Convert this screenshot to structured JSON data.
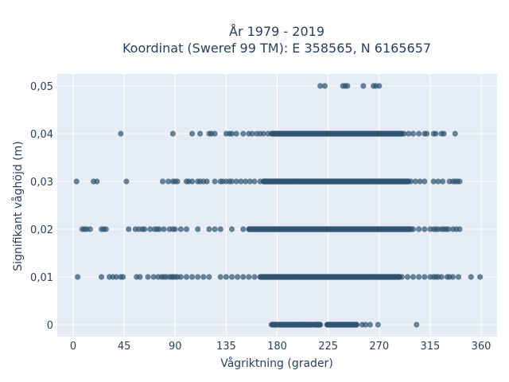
{
  "chart_data": {
    "type": "scatter",
    "title_line1": "År 1979 - 2019",
    "title_line2": "Koordinat (Sweref 99 TM): E 358565, N 6165657",
    "xlabel": "Vågriktning (grader)",
    "ylabel": "Signifikant våghöjd (m)",
    "xlim": [
      -14,
      374
    ],
    "ylim": [
      -0.0025,
      0.0525
    ],
    "x_ticks": [
      0,
      45,
      90,
      135,
      180,
      225,
      270,
      315,
      360
    ],
    "x_tick_labels": [
      "0",
      "45",
      "90",
      "135",
      "180",
      "225",
      "270",
      "315",
      "360"
    ],
    "y_ticks": [
      0,
      0.01,
      0.02,
      0.03,
      0.04,
      0.05
    ],
    "y_tick_labels": [
      "0",
      "0,01",
      "0,02",
      "0,03",
      "0,04",
      "0,05"
    ],
    "grid": true,
    "marker_color": "#2f5470",
    "plot_background": "#e5ecf6",
    "series": [
      {
        "y": 0.05,
        "points": [
          218,
          222,
          238,
          240,
          242,
          256,
          265,
          267,
          270
        ],
        "dense_ranges": []
      },
      {
        "y": 0.04,
        "points": [
          42,
          88,
          105,
          112,
          120,
          122,
          125,
          135,
          138,
          140,
          144,
          150,
          155,
          158,
          162,
          165,
          168,
          172,
          292,
          296,
          300,
          305,
          310,
          312,
          318,
          320,
          325,
          327,
          337
        ],
        "dense_ranges": [
          [
            175,
            290
          ]
        ]
      },
      {
        "y": 0.03,
        "points": [
          3,
          18,
          21,
          47,
          79,
          84,
          88,
          90,
          92,
          100,
          102,
          105,
          110,
          112,
          115,
          118,
          125,
          130,
          132,
          135,
          138,
          140,
          144,
          148,
          152,
          156,
          160,
          165,
          298,
          302,
          306,
          310,
          318,
          322,
          326,
          332,
          335,
          337,
          339,
          341
        ],
        "dense_ranges": [
          [
            168,
            296
          ]
        ]
      },
      {
        "y": 0.02,
        "points": [
          8,
          10,
          12,
          15,
          25,
          27,
          29,
          49,
          55,
          58,
          61,
          63,
          68,
          72,
          74,
          76,
          80,
          85,
          88,
          90,
          95,
          100,
          110,
          120,
          125,
          130,
          140,
          150,
          300,
          305,
          310,
          315,
          318,
          320,
          322,
          325,
          327,
          329,
          331,
          335,
          338,
          341
        ],
        "dense_ranges": [
          [
            155,
            298
          ]
        ]
      },
      {
        "y": 0.01,
        "points": [
          4,
          25,
          32,
          35,
          38,
          42,
          44,
          56,
          59,
          66,
          71,
          75,
          78,
          80,
          82,
          85,
          87,
          88,
          90,
          92,
          95,
          100,
          105,
          110,
          115,
          120,
          130,
          135,
          140,
          145,
          150,
          155,
          160,
          290,
          295,
          300,
          305,
          310,
          315,
          318,
          320,
          322,
          325,
          330,
          332,
          335,
          340,
          351,
          359
        ],
        "dense_ranges": [
          [
            165,
            288
          ]
        ]
      },
      {
        "y": 0,
        "points": [
          175,
          177,
          180,
          185,
          190,
          195,
          200,
          205,
          210,
          215,
          216,
          225,
          230,
          235,
          240,
          245,
          250,
          255,
          258,
          262,
          269,
          303
        ],
        "dense_ranges": [
          [
            176,
            180
          ],
          [
            182,
            210
          ],
          [
            212,
            218
          ],
          [
            224,
            250
          ]
        ]
      }
    ]
  }
}
